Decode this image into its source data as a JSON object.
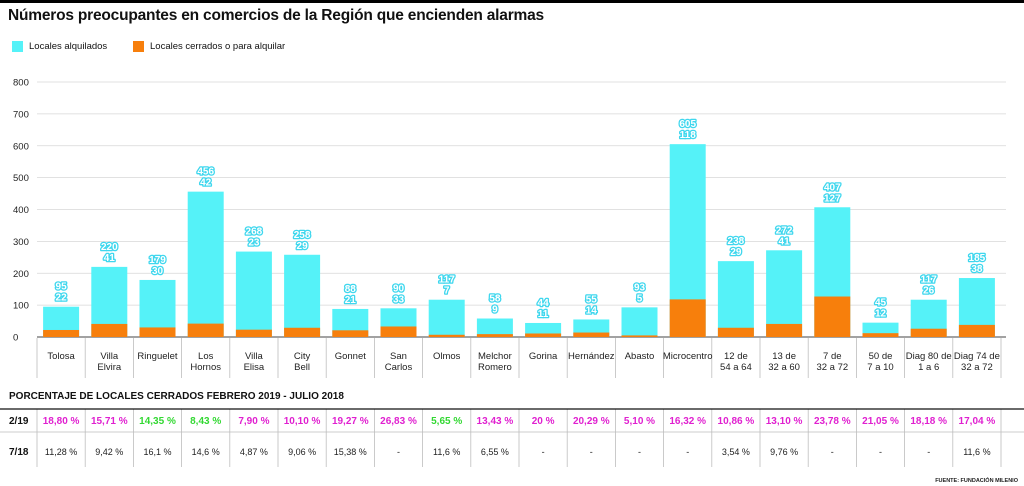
{
  "title": "Números preocupantes en comercios de la Región que encienden alarmas",
  "legend": {
    "rented": {
      "label": "Locales alquilados",
      "color": "#55f2f8"
    },
    "closed": {
      "label": "Locales cerrados o para alquilar",
      "color": "#f77f0c"
    }
  },
  "chart_data": {
    "type": "bar",
    "stacked": true,
    "yticks": [
      "800",
      "700",
      "600",
      "500",
      "400",
      "300",
      "200",
      "100",
      "0"
    ],
    "ylim": [
      0,
      800
    ],
    "categories": [
      [
        "Tolosa"
      ],
      [
        "Villa",
        "Elvira"
      ],
      [
        "Ringuelet"
      ],
      [
        "Los",
        "Hornos"
      ],
      [
        "Villa",
        "Elisa"
      ],
      [
        "City",
        "Bell"
      ],
      [
        "Gonnet"
      ],
      [
        "San",
        "Carlos"
      ],
      [
        "Olmos"
      ],
      [
        "Melchor",
        "Romero"
      ],
      [
        "Gorina"
      ],
      [
        "Hernández"
      ],
      [
        "Abasto"
      ],
      [
        "Microcentro"
      ],
      [
        "12 de",
        "54 a 64"
      ],
      [
        "13 de",
        "32 a 60"
      ],
      [
        "7 de",
        "32 a 72"
      ],
      [
        "50 de",
        "7 a 10"
      ],
      [
        "Diag 80 de",
        "1 a 6"
      ],
      [
        "Diag 74 de",
        "32 a 72"
      ]
    ],
    "series": [
      {
        "name": "Locales alquilados",
        "labels": [
          "95",
          "220",
          "179",
          "456",
          "268",
          "258",
          "88",
          "90",
          "117",
          "58",
          "44",
          "55",
          "93",
          "605",
          "238",
          "272",
          "407",
          "45",
          "117",
          "185"
        ],
        "values": [
          95,
          220,
          179,
          456,
          268,
          258,
          88,
          90,
          117,
          58,
          44,
          55,
          93,
          605,
          238,
          272,
          407,
          45,
          117,
          185
        ]
      },
      {
        "name": "Locales cerrados o para alquilar",
        "labels": [
          "22",
          "41",
          "30",
          "42",
          "23",
          "29",
          "21",
          "33",
          "7",
          "9",
          "11",
          "14",
          "5",
          "118",
          "29",
          "41",
          "127",
          "12",
          "26",
          "38"
        ],
        "values": [
          22,
          41,
          30,
          42,
          23,
          29,
          21,
          33,
          7,
          9,
          11,
          14,
          5,
          118,
          29,
          41,
          127,
          12,
          26,
          38
        ]
      }
    ]
  },
  "percent_table": {
    "heading": "PORCENTAJE DE LOCALES CERRADOS FEBRERO 2019 - JULIO 2018",
    "rows": [
      {
        "label": "2/19",
        "values": [
          "18,80 %",
          "15,71 %",
          "14,35 %",
          "8,43 %",
          "7,90 %",
          "10,10 %",
          "19,27 %",
          "26,83 %",
          "5,65 %",
          "13,43 %",
          "20 %",
          "20,29 %",
          "5,10 %",
          "16,32 %",
          "10,86 %",
          "13,10 %",
          "23,78 %",
          "21,05 %",
          "18,18 %",
          "17,04 %"
        ],
        "colors": [
          "#e020d0",
          "#e020d0",
          "#32d832",
          "#32d832",
          "#e020d0",
          "#e020d0",
          "#e020d0",
          "#e020d0",
          "#32d832",
          "#e020d0",
          "#e020d0",
          "#e020d0",
          "#e020d0",
          "#e020d0",
          "#e020d0",
          "#e020d0",
          "#e020d0",
          "#e020d0",
          "#e020d0",
          "#e020d0"
        ]
      },
      {
        "label": "7/18",
        "values": [
          "11,28 %",
          "9,42 %",
          "16,1 %",
          "14,6 %",
          "4,87 %",
          "9,06 %",
          "15,38 %",
          "-",
          "11,6 %",
          "6,55 %",
          "-",
          "-",
          "-",
          "-",
          "3,54 %",
          "9,76 %",
          "-",
          "-",
          "-",
          "11,6 %"
        ],
        "colors": []
      }
    ]
  },
  "source": "FUENTE: FUNDACIÓN MILENIO"
}
